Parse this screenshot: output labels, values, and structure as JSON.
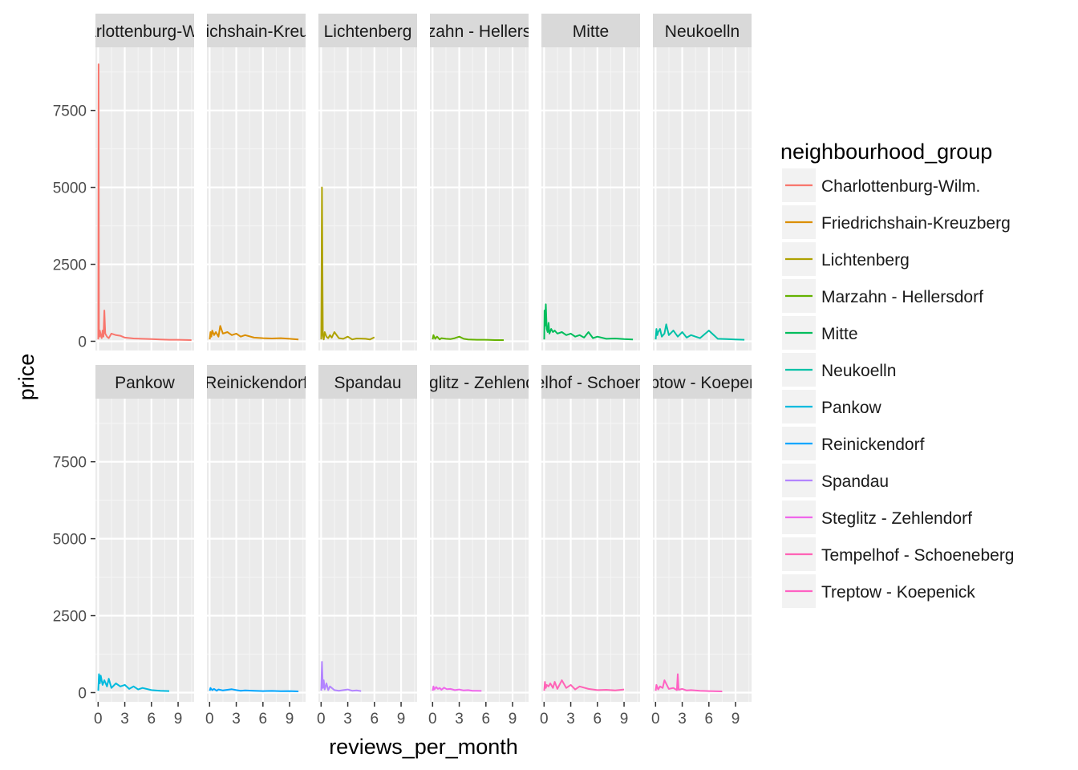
{
  "chart_data": {
    "type": "line",
    "facet_by": "neighbourhood_group",
    "facet_layout": {
      "rows": 2,
      "cols": 6
    },
    "xlabel": "reviews_per_month",
    "ylabel": "price",
    "xlim": [
      -0.3,
      10.8
    ],
    "ylim": [
      -300,
      9550
    ],
    "x_ticks": [
      0,
      3,
      6,
      9
    ],
    "y_ticks": [
      0,
      2500,
      5000,
      7500
    ],
    "x_tick_labels": [
      "0",
      "3",
      "6",
      "9"
    ],
    "y_tick_labels": [
      "0",
      "2500",
      "5000",
      "7500"
    ],
    "legend": {
      "title": "neighbourhood_group",
      "position": "right"
    },
    "panel_background": "#ebebeb",
    "strip_background": "#d9d9d9",
    "strip_labels": [
      "Charlottenburg-Wilm.",
      "Friedrichshain-Kreuzberg",
      "Lichtenberg",
      "Marzahn - Hellersdorf",
      "Mitte",
      "Neukoelln",
      "Pankow",
      "Reinickendorf",
      "Spandau",
      "Steglitz - Zehlendorf",
      "Tempelhof - Schoeneberg",
      "Treptow - Koepenick"
    ],
    "series": [
      {
        "name": "Charlottenburg-Wilm.",
        "color": "#F8766D",
        "x": [
          0.02,
          0.05,
          0.1,
          0.15,
          0.2,
          0.3,
          0.4,
          0.5,
          0.6,
          0.7,
          0.8,
          1.0,
          1.2,
          1.5,
          2,
          2.5,
          3,
          4,
          5,
          6,
          7,
          8,
          9,
          10.5
        ],
        "y": [
          60,
          9000,
          300,
          150,
          350,
          200,
          100,
          350,
          150,
          1000,
          250,
          150,
          100,
          250,
          200,
          180,
          120,
          90,
          80,
          70,
          60,
          50,
          50,
          40
        ]
      },
      {
        "name": "Friedrichshain-Kreuzberg",
        "color": "#DB8E00",
        "x": [
          0.02,
          0.1,
          0.2,
          0.3,
          0.5,
          0.7,
          1,
          1.2,
          1.5,
          2,
          2.5,
          3,
          3.5,
          4,
          5,
          6,
          7,
          8,
          9,
          10
        ],
        "y": [
          60,
          300,
          150,
          350,
          200,
          300,
          150,
          500,
          250,
          300,
          200,
          250,
          150,
          200,
          120,
          100,
          90,
          100,
          80,
          60
        ]
      },
      {
        "name": "Lichtenberg",
        "color": "#AEA200",
        "x": [
          0.02,
          0.1,
          0.2,
          0.3,
          0.4,
          0.6,
          0.8,
          1,
          1.2,
          1.5,
          2,
          2.5,
          3,
          3.5,
          4,
          5,
          5.5,
          6
        ],
        "y": [
          60,
          5000,
          200,
          60,
          300,
          150,
          100,
          200,
          120,
          300,
          100,
          80,
          150,
          60,
          90,
          80,
          60,
          130
        ]
      },
      {
        "name": "Marzahn - Hellersdorf",
        "color": "#64B200",
        "x": [
          0.02,
          0.1,
          0.3,
          0.5,
          0.8,
          1,
          1.5,
          2,
          2.5,
          3,
          3.5,
          4,
          5,
          6,
          7,
          8
        ],
        "y": [
          60,
          200,
          80,
          150,
          60,
          100,
          80,
          70,
          100,
          150,
          80,
          60,
          50,
          50,
          40,
          40
        ]
      },
      {
        "name": "Mitte",
        "color": "#00BD5C",
        "x": [
          0.02,
          0.05,
          0.1,
          0.2,
          0.3,
          0.4,
          0.5,
          0.6,
          0.8,
          1,
          1.2,
          1.5,
          2,
          2.5,
          3,
          3.5,
          4,
          4.5,
          5,
          5.5,
          6,
          7,
          8,
          9,
          10
        ],
        "y": [
          60,
          1000,
          500,
          1200,
          400,
          300,
          600,
          250,
          400,
          300,
          350,
          250,
          300,
          200,
          250,
          150,
          200,
          120,
          300,
          100,
          150,
          80,
          90,
          70,
          60
        ]
      },
      {
        "name": "Neukoelln",
        "color": "#00C1A7",
        "x": [
          0.02,
          0.1,
          0.2,
          0.3,
          0.5,
          0.7,
          1,
          1.2,
          1.5,
          2,
          2.5,
          3,
          3.5,
          4,
          5,
          6,
          7,
          8,
          9,
          10
        ],
        "y": [
          60,
          400,
          200,
          300,
          400,
          150,
          250,
          550,
          200,
          350,
          150,
          300,
          120,
          200,
          100,
          350,
          80,
          70,
          60,
          50
        ]
      },
      {
        "name": "Pankow",
        "color": "#00BADE",
        "x": [
          0.02,
          0.1,
          0.2,
          0.3,
          0.5,
          0.7,
          1,
          1.2,
          1.5,
          2,
          2.5,
          3,
          3.5,
          4,
          4.5,
          5,
          6,
          7,
          8
        ],
        "y": [
          60,
          600,
          300,
          550,
          250,
          400,
          200,
          450,
          150,
          300,
          200,
          250,
          120,
          200,
          100,
          150,
          80,
          60,
          50
        ]
      },
      {
        "name": "Reinickendorf",
        "color": "#00A6FF",
        "x": [
          0.02,
          0.1,
          0.3,
          0.5,
          0.8,
          1,
          1.5,
          2,
          2.5,
          3,
          3.5,
          4,
          5,
          6,
          7,
          8,
          9,
          10
        ],
        "y": [
          60,
          150,
          80,
          120,
          60,
          100,
          70,
          90,
          110,
          80,
          60,
          70,
          60,
          50,
          55,
          45,
          50,
          40
        ]
      },
      {
        "name": "Spandau",
        "color": "#B385FF",
        "x": [
          0.02,
          0.1,
          0.2,
          0.3,
          0.4,
          0.6,
          0.8,
          1,
          1.5,
          2,
          2.5,
          3,
          3.5,
          4,
          4.5
        ],
        "y": [
          60,
          1000,
          150,
          400,
          100,
          300,
          80,
          200,
          80,
          60,
          80,
          100,
          60,
          70,
          50
        ]
      },
      {
        "name": "Steglitz - Zehlendorf",
        "color": "#EF67EB",
        "x": [
          0.02,
          0.1,
          0.2,
          0.4,
          0.6,
          0.8,
          1,
          1.3,
          1.6,
          2,
          2.5,
          3,
          3.5,
          4,
          4.5,
          5,
          5.5
        ],
        "y": [
          60,
          200,
          100,
          180,
          120,
          150,
          90,
          160,
          110,
          120,
          80,
          100,
          70,
          80,
          60,
          60,
          55
        ]
      },
      {
        "name": "Tempelhof - Schoeneberg",
        "color": "#FF63B6",
        "x": [
          0.02,
          0.1,
          0.2,
          0.3,
          0.5,
          0.7,
          1,
          1.2,
          1.5,
          2,
          2.5,
          3,
          3.5,
          4,
          5,
          6,
          7,
          8,
          9
        ],
        "y": [
          60,
          350,
          150,
          250,
          200,
          300,
          150,
          350,
          120,
          400,
          150,
          250,
          100,
          200,
          120,
          80,
          90,
          70,
          100
        ]
      },
      {
        "name": "Treptow - Koepenick",
        "color": "#FF61C3",
        "x": [
          0.02,
          0.1,
          0.3,
          0.5,
          0.8,
          1,
          1.5,
          2,
          2.4,
          2.5,
          2.6,
          3,
          3.5,
          4,
          5,
          6,
          7.5
        ],
        "y": [
          60,
          250,
          100,
          200,
          150,
          400,
          120,
          150,
          80,
          600,
          90,
          120,
          70,
          80,
          60,
          50,
          40
        ]
      }
    ]
  }
}
